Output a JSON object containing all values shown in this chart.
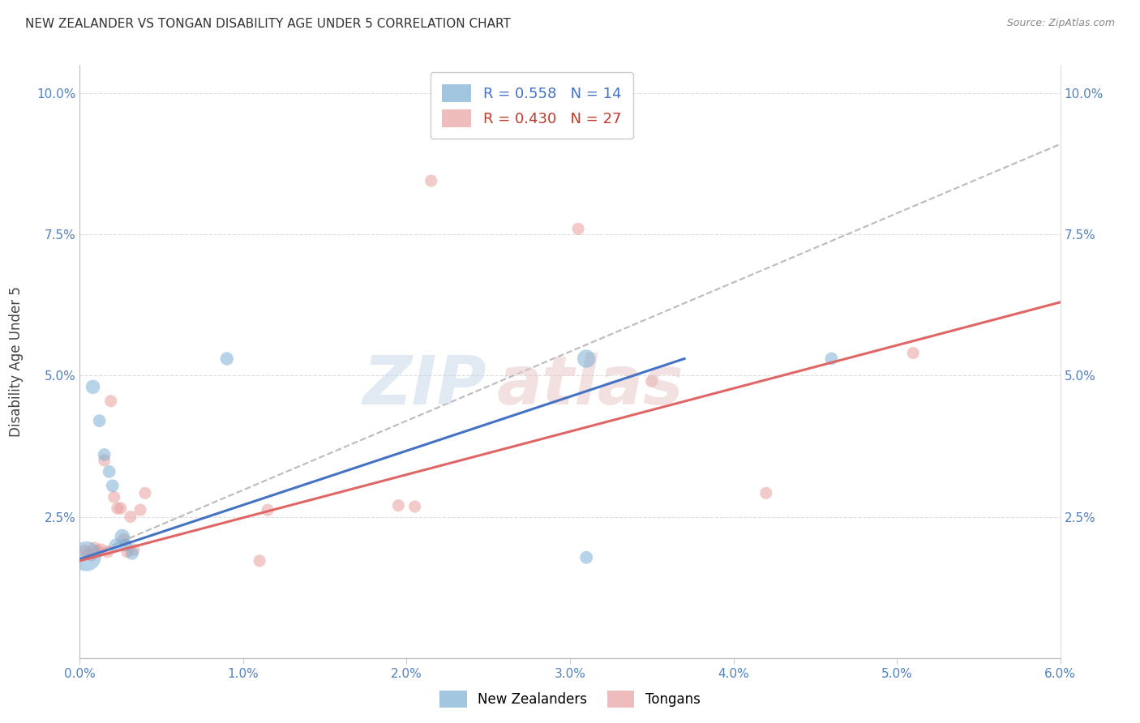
{
  "title": "NEW ZEALANDER VS TONGAN DISABILITY AGE UNDER 5 CORRELATION CHART",
  "source": "Source: ZipAtlas.com",
  "ylabel": "Disability Age Under 5",
  "xlim": [
    0.0,
    0.06
  ],
  "ylim": [
    0.0,
    0.105
  ],
  "xtick_vals": [
    0.0,
    0.01,
    0.02,
    0.03,
    0.04,
    0.05,
    0.06
  ],
  "ytick_vals": [
    0.0,
    0.025,
    0.05,
    0.075,
    0.1
  ],
  "xtick_labels": [
    "0.0%",
    "1.0%",
    "2.0%",
    "3.0%",
    "4.0%",
    "5.0%",
    "6.0%"
  ],
  "ytick_labels_left": [
    "",
    "2.5%",
    "5.0%",
    "7.5%",
    "10.0%"
  ],
  "ytick_labels_right": [
    "",
    "2.5%",
    "5.0%",
    "7.5%",
    "10.0%"
  ],
  "nz_color": "#7bafd4",
  "tongan_color": "#e8a0a0",
  "nz_line_color": "#4472c4",
  "tongan_line_color": "#e06666",
  "nz_R": 0.558,
  "nz_N": 14,
  "tongan_R": 0.43,
  "tongan_N": 27,
  "legend_labels": [
    "New Zealanders",
    "Tongans"
  ],
  "nz_points": [
    [
      0.0004,
      0.018,
      700
    ],
    [
      0.0008,
      0.048,
      160
    ],
    [
      0.0012,
      0.042,
      130
    ],
    [
      0.0015,
      0.036,
      130
    ],
    [
      0.0018,
      0.033,
      130
    ],
    [
      0.002,
      0.0305,
      130
    ],
    [
      0.0022,
      0.02,
      130
    ],
    [
      0.0026,
      0.0215,
      180
    ],
    [
      0.0028,
      0.02,
      130
    ],
    [
      0.0032,
      0.0185,
      130
    ],
    [
      0.009,
      0.053,
      140
    ],
    [
      0.031,
      0.053,
      260
    ],
    [
      0.031,
      0.0178,
      130
    ],
    [
      0.046,
      0.053,
      130
    ]
  ],
  "tongan_points": [
    [
      0.0003,
      0.019,
      120
    ],
    [
      0.0005,
      0.0185,
      120
    ],
    [
      0.0007,
      0.0182,
      120
    ],
    [
      0.0009,
      0.0195,
      120
    ],
    [
      0.0011,
      0.019,
      120
    ],
    [
      0.0013,
      0.0192,
      120
    ],
    [
      0.0015,
      0.035,
      120
    ],
    [
      0.0017,
      0.0188,
      120
    ],
    [
      0.0019,
      0.0455,
      120
    ],
    [
      0.0021,
      0.0285,
      120
    ],
    [
      0.0023,
      0.0265,
      120
    ],
    [
      0.0025,
      0.0265,
      120
    ],
    [
      0.0027,
      0.021,
      120
    ],
    [
      0.0029,
      0.0188,
      120
    ],
    [
      0.0031,
      0.025,
      120
    ],
    [
      0.0033,
      0.0192,
      120
    ],
    [
      0.0037,
      0.0262,
      120
    ],
    [
      0.004,
      0.0292,
      120
    ],
    [
      0.011,
      0.0172,
      120
    ],
    [
      0.0115,
      0.0262,
      120
    ],
    [
      0.0195,
      0.027,
      120
    ],
    [
      0.0205,
      0.0268,
      120
    ],
    [
      0.0215,
      0.0845,
      120
    ],
    [
      0.0305,
      0.076,
      120
    ],
    [
      0.035,
      0.049,
      120
    ],
    [
      0.042,
      0.0292,
      120
    ],
    [
      0.051,
      0.054,
      120
    ]
  ],
  "nz_line_x0": 0.0,
  "nz_line_y0": 0.0175,
  "nz_line_x1": 0.037,
  "nz_line_y1": 0.053,
  "ton_line_x0": 0.0,
  "ton_line_y0": 0.0172,
  "ton_line_x1": 0.06,
  "ton_line_y1": 0.063,
  "dash_line_x0": 0.0,
  "dash_line_y0": 0.0175,
  "dash_line_x1": 0.06,
  "dash_line_y1": 0.091
}
